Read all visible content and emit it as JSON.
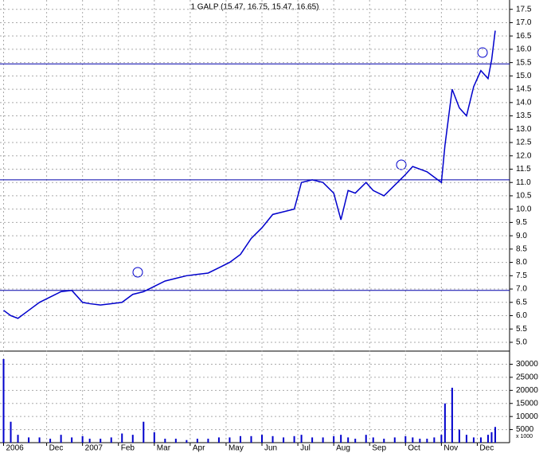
{
  "chart_data": {
    "type": "line",
    "title": "1 GALP (15.47, 16.75, 15.47, 16.65)",
    "x": [
      0,
      4,
      8,
      14,
      20,
      26,
      32,
      38,
      44,
      48,
      54,
      60,
      66,
      72,
      78,
      84,
      90,
      96,
      102,
      108,
      114,
      120,
      126,
      132,
      138,
      144,
      150,
      156,
      162,
      166,
      172,
      178,
      184,
      188,
      192,
      196,
      202,
      206,
      212,
      218,
      224,
      228,
      232,
      236,
      240,
      244,
      246,
      250,
      254,
      258,
      262,
      266,
      270,
      272,
      274
    ],
    "series": [
      {
        "name": "GALP",
        "color": "#0000cc",
        "values": [
          6.2,
          6.0,
          5.9,
          6.2,
          6.5,
          6.7,
          6.9,
          6.95,
          6.5,
          6.45,
          6.4,
          6.45,
          6.5,
          6.8,
          6.9,
          7.1,
          7.3,
          7.4,
          7.5,
          7.55,
          7.6,
          7.8,
          8.0,
          8.3,
          8.9,
          9.3,
          9.8,
          9.9,
          10.0,
          11.0,
          11.1,
          11.0,
          10.6,
          9.6,
          10.7,
          10.6,
          11.0,
          10.7,
          10.5,
          10.9,
          11.3,
          11.6,
          11.5,
          11.4,
          11.2,
          11.0,
          12.4,
          14.5,
          13.8,
          13.5,
          14.6,
          15.2,
          14.9,
          15.6,
          16.7
        ]
      }
    ],
    "volume": {
      "color": "#0000cc",
      "values": [
        32000,
        8000,
        3000,
        2000,
        2000,
        1500,
        3000,
        2000,
        2500,
        1500,
        1500,
        2000,
        3500,
        3000,
        8000,
        4000,
        1500,
        1500,
        1000,
        1500,
        1500,
        2000,
        2000,
        2500,
        2500,
        3000,
        2500,
        2000,
        2500,
        3000,
        2000,
        2000,
        2500,
        3000,
        2000,
        1500,
        3000,
        2000,
        1500,
        2000,
        2500,
        2000,
        1500,
        1500,
        2000,
        3000,
        15000,
        21000,
        5000,
        3000,
        2000,
        2000,
        3000,
        4000,
        6000
      ],
      "ylim": [
        0,
        33500
      ],
      "yticks": [
        5000,
        10000,
        15000,
        20000,
        25000,
        30000
      ],
      "unit": "x 1000"
    },
    "hlines": [
      15.45,
      11.1,
      6.95
    ],
    "xlim": [
      -2,
      282
    ],
    "xticks": [
      {
        "value": 0,
        "label": "2006"
      },
      {
        "value": 24,
        "label": "Dec"
      },
      {
        "value": 44,
        "label": "2007"
      },
      {
        "value": 64,
        "label": "Feb"
      },
      {
        "value": 84,
        "label": "Mar"
      },
      {
        "value": 104,
        "label": "Apr"
      },
      {
        "value": 124,
        "label": "May"
      },
      {
        "value": 144,
        "label": "Jun"
      },
      {
        "value": 164,
        "label": "Jul"
      },
      {
        "value": 184,
        "label": "Aug"
      },
      {
        "value": 204,
        "label": "Sep"
      },
      {
        "value": 224,
        "label": "Oct"
      },
      {
        "value": 244,
        "label": "Nov"
      },
      {
        "value": 264,
        "label": "Dec"
      }
    ],
    "ylim": [
      4.7,
      17.85
    ],
    "yticks": [
      {
        "value": 5,
        "label": "5.0"
      },
      5.5,
      {
        "value": 6,
        "label": "6.0"
      },
      6.5,
      {
        "value": 7,
        "label": "7.0"
      },
      7.5,
      {
        "value": 8,
        "label": "8.0"
      },
      8.5,
      {
        "value": 9,
        "label": "9.0"
      },
      9.5,
      {
        "value": 10,
        "label": "10.0"
      },
      10.5,
      {
        "value": 11,
        "label": "11.0"
      },
      11.5,
      {
        "value": 12,
        "label": "12.0"
      },
      12.5,
      {
        "value": 13,
        "label": "13.0"
      },
      13.5,
      {
        "value": 14,
        "label": "14.0"
      },
      14.5,
      {
        "value": 15,
        "label": "15.0"
      },
      15.5,
      {
        "value": 16,
        "label": "16.0"
      },
      16.5,
      {
        "value": 17,
        "label": "17.0"
      },
      17.5
    ],
    "grid": true
  }
}
